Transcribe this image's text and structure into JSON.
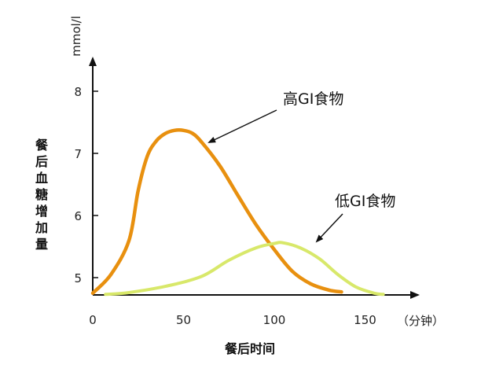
{
  "chart_data": {
    "type": "line",
    "title": "",
    "xlabel": "餐后时间",
    "xunit": "（分钟）",
    "ylabel": "餐后血糖增加量",
    "yunit": "mmol/l",
    "xlim": [
      0,
      180
    ],
    "ylim": [
      4.7,
      8.6
    ],
    "xticks": [
      "0",
      "50",
      "100",
      "150"
    ],
    "yticks": [
      "5",
      "6",
      "7",
      "8"
    ],
    "grid": false,
    "series": [
      {
        "name": "高GI食物",
        "color": "#E8900F",
        "x": [
          0,
          10,
          20,
          25,
          30,
          35,
          40,
          45,
          50,
          55,
          60,
          70,
          80,
          90,
          100,
          110,
          120,
          130,
          137
        ],
        "y": [
          4.75,
          5.05,
          5.6,
          6.4,
          6.95,
          7.2,
          7.32,
          7.37,
          7.37,
          7.32,
          7.18,
          6.8,
          6.32,
          5.85,
          5.45,
          5.1,
          4.9,
          4.8,
          4.77
        ]
      },
      {
        "name": "低GI食物",
        "color": "#D8E86A",
        "x": [
          7,
          20,
          40,
          60,
          75,
          90,
          100,
          105,
          115,
          125,
          135,
          145,
          155,
          160
        ],
        "y": [
          4.73,
          4.76,
          4.86,
          5.02,
          5.28,
          5.48,
          5.55,
          5.56,
          5.47,
          5.3,
          5.05,
          4.85,
          4.75,
          4.73
        ]
      }
    ],
    "annotations": [
      {
        "text": "高GI食物",
        "series": 0
      },
      {
        "text": "低GI食物",
        "series": 1
      }
    ]
  }
}
